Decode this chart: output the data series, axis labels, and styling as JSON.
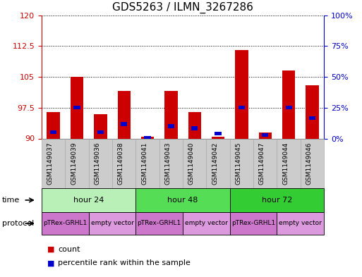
{
  "title": "GDS5263 / ILMN_3267286",
  "samples": [
    "GSM1149037",
    "GSM1149039",
    "GSM1149036",
    "GSM1149038",
    "GSM1149041",
    "GSM1149043",
    "GSM1149040",
    "GSM1149042",
    "GSM1149045",
    "GSM1149047",
    "GSM1149044",
    "GSM1149046"
  ],
  "red_values": [
    96.5,
    105.0,
    96.0,
    101.5,
    90.5,
    101.5,
    96.5,
    90.5,
    111.5,
    91.5,
    106.5,
    103.0
  ],
  "blue_values": [
    91.5,
    97.5,
    91.5,
    93.5,
    90.2,
    93.0,
    92.5,
    91.2,
    97.5,
    90.8,
    97.5,
    95.0
  ],
  "y_min": 90,
  "y_max": 120,
  "y_ticks": [
    90,
    97.5,
    105,
    112.5,
    120
  ],
  "y2_ticks_pct": [
    0,
    25,
    50,
    75,
    100
  ],
  "time_groups": [
    {
      "label": "hour 24",
      "start": 0,
      "end": 4,
      "color": "#b8f0b8"
    },
    {
      "label": "hour 48",
      "start": 4,
      "end": 8,
      "color": "#55dd55"
    },
    {
      "label": "hour 72",
      "start": 8,
      "end": 12,
      "color": "#33cc33"
    }
  ],
  "protocol_groups": [
    {
      "label": "pTRex-GRHL1",
      "start": 0,
      "end": 2,
      "color": "#cc77cc"
    },
    {
      "label": "empty vector",
      "start": 2,
      "end": 4,
      "color": "#dd99dd"
    },
    {
      "label": "pTRex-GRHL1",
      "start": 4,
      "end": 6,
      "color": "#cc77cc"
    },
    {
      "label": "empty vector",
      "start": 6,
      "end": 8,
      "color": "#dd99dd"
    },
    {
      "label": "pTRex-GRHL1",
      "start": 8,
      "end": 10,
      "color": "#cc77cc"
    },
    {
      "label": "empty vector",
      "start": 10,
      "end": 12,
      "color": "#dd99dd"
    }
  ],
  "bar_width": 0.55,
  "red_color": "#cc0000",
  "blue_color": "#0000cc",
  "grid_color": "#000000",
  "label_color_left": "#cc0000",
  "label_color_right": "#0000cc",
  "sample_bg_color": "#cccccc",
  "sample_border_color": "#aaaaaa"
}
